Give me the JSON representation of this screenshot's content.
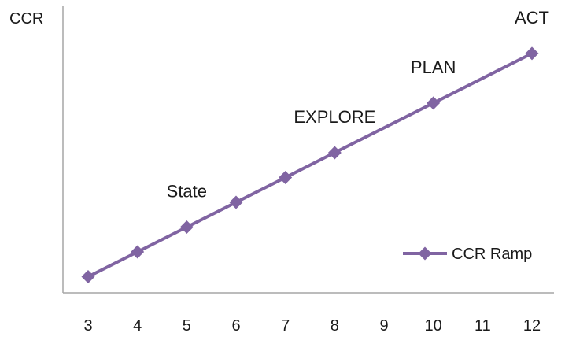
{
  "chart_data": {
    "type": "line",
    "title": "",
    "xlabel": "",
    "ylabel": "CCR",
    "categories": [
      "3",
      "4",
      "5",
      "6",
      "7",
      "8",
      "9",
      "10",
      "11",
      "12"
    ],
    "series": [
      {
        "name": "CCR Ramp",
        "color": "#8064A2",
        "marker": "diamond",
        "points": [
          {
            "x": "3",
            "y": 0
          },
          {
            "x": "4",
            "y": 1
          },
          {
            "x": "5",
            "y": 2
          },
          {
            "x": "6",
            "y": 3
          },
          {
            "x": "7",
            "y": 4
          },
          {
            "x": "8",
            "y": 5
          },
          {
            "x": "10",
            "y": 7
          },
          {
            "x": "12",
            "y": 9
          }
        ]
      }
    ],
    "annotations": [
      {
        "text": "State",
        "x": "5"
      },
      {
        "text": "EXPLORE",
        "x": "8"
      },
      {
        "text": "PLAN",
        "x": "10"
      },
      {
        "text": "ACT",
        "x": "12"
      }
    ],
    "ylim": [
      -0.65,
      10.9
    ],
    "y_tick_labels": false,
    "grid": false,
    "legend": "bottom-right"
  }
}
